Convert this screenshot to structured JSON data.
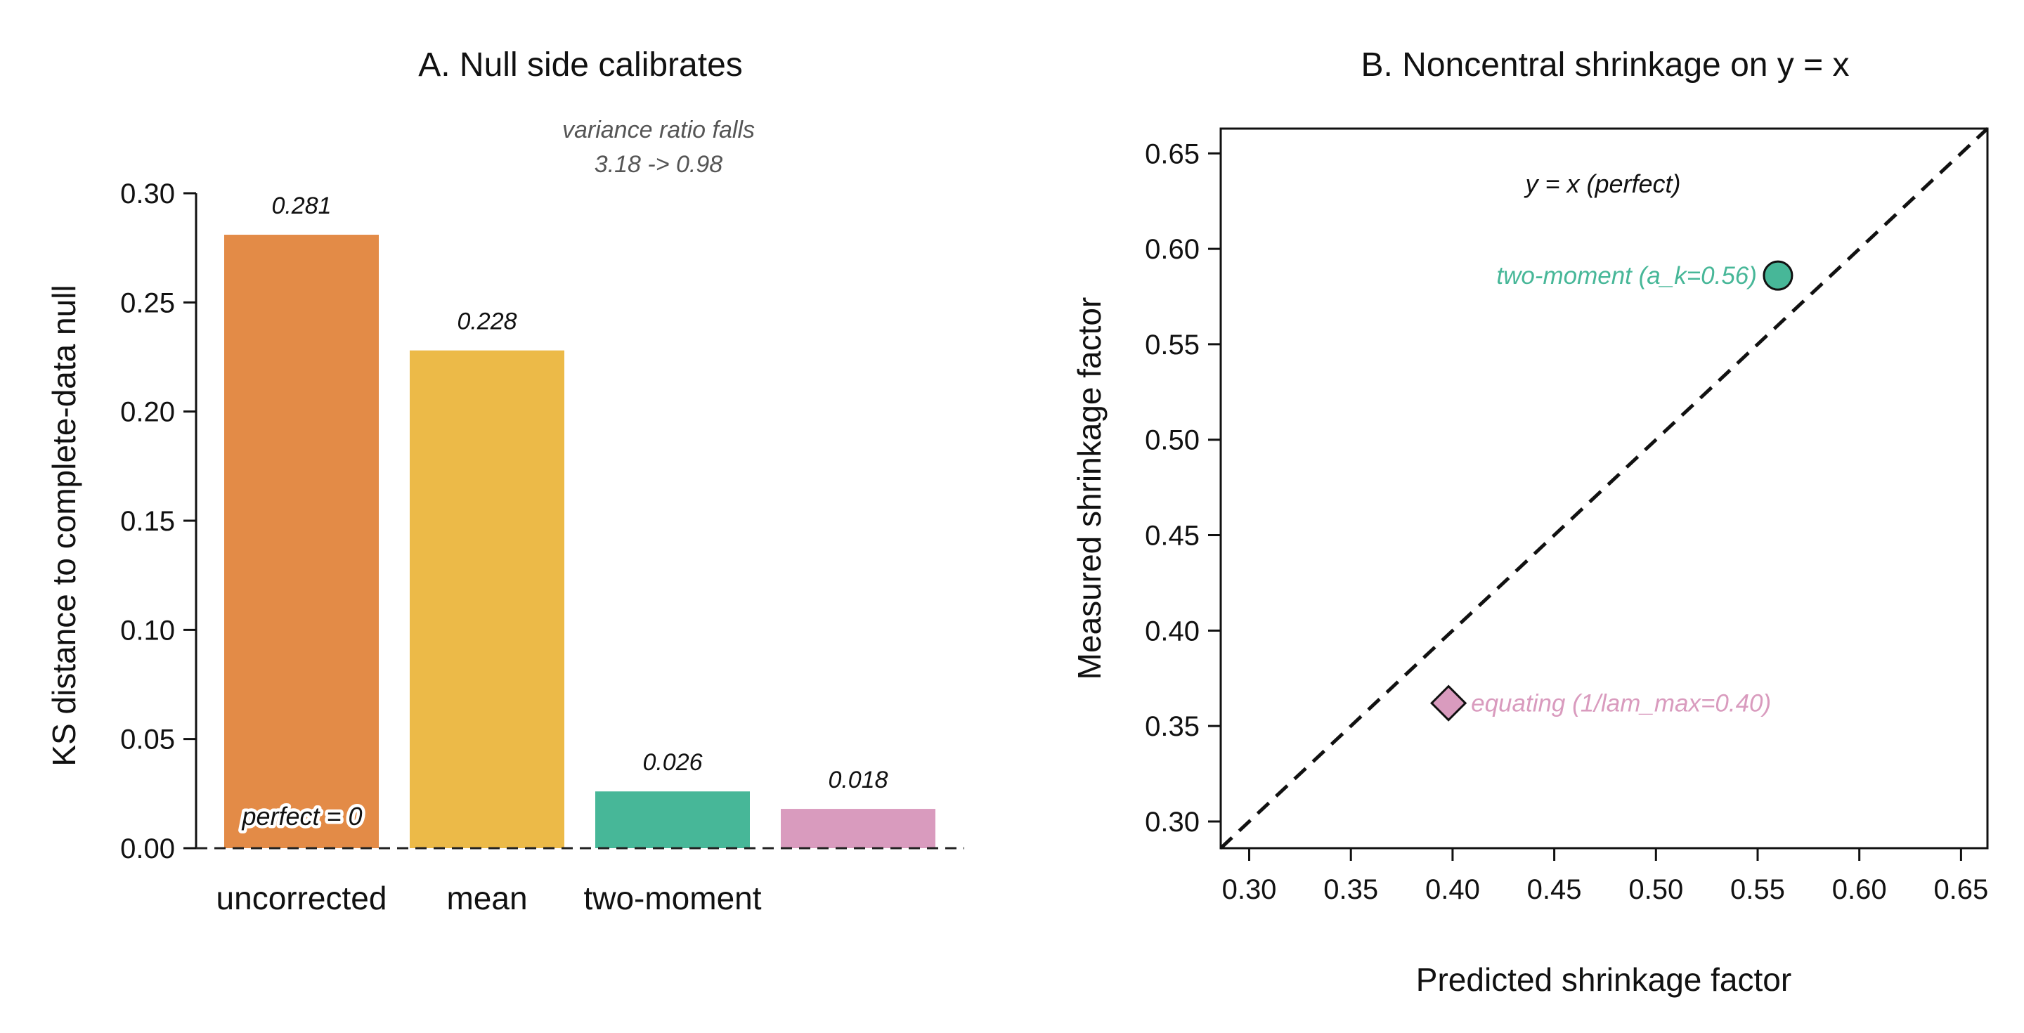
{
  "chart_data": [
    {
      "panel": "A",
      "type": "bar",
      "title": "A. Null side calibrates",
      "xlabel": "",
      "ylabel": "KS distance to complete-data null",
      "categories": [
        "uncorrected",
        "mean",
        "two-moment",
        ""
      ],
      "values": [
        0.281,
        0.228,
        0.026,
        0.018
      ],
      "data_labels": [
        "0.281",
        "0.228",
        "0.026",
        "0.018"
      ],
      "colors": [
        "#E38B47",
        "#ECBA48",
        "#47B798",
        "#D99BBE"
      ],
      "ylim": [
        0,
        0.3
      ],
      "yticks": [
        0.0,
        0.05,
        0.1,
        0.15,
        0.2,
        0.25,
        0.3
      ],
      "ytick_labels": [
        "0.00",
        "0.05",
        "0.10",
        "0.15",
        "0.20",
        "0.25",
        "0.30"
      ],
      "reference_line": {
        "y": 0,
        "label": "perfect = 0",
        "style": "dashed"
      },
      "annotation": {
        "lines": [
          "variance ratio falls",
          "3.18 -> 0.98"
        ]
      },
      "grid": false
    },
    {
      "panel": "B",
      "type": "scatter",
      "title": "B. Noncentral shrinkage on y = x",
      "xlabel": "Predicted shrinkage factor",
      "ylabel": "Measured shrinkage factor",
      "xlim": [
        0.286,
        0.663
      ],
      "ylim": [
        0.286,
        0.663
      ],
      "xticks": [
        0.3,
        0.35,
        0.4,
        0.45,
        0.5,
        0.55,
        0.6,
        0.65
      ],
      "xtick_labels": [
        "0.30",
        "0.35",
        "0.40",
        "0.45",
        "0.50",
        "0.55",
        "0.60",
        "0.65"
      ],
      "yticks": [
        0.3,
        0.35,
        0.4,
        0.45,
        0.5,
        0.55,
        0.6,
        0.65
      ],
      "ytick_labels": [
        "0.30",
        "0.35",
        "0.40",
        "0.45",
        "0.50",
        "0.55",
        "0.60",
        "0.65"
      ],
      "reference_line": {
        "type": "y = x",
        "label": "y = x (perfect)",
        "style": "dashed"
      },
      "points": [
        {
          "label": "two-moment (a_k=0.56)",
          "x": 0.56,
          "y": 0.586,
          "marker": "circle",
          "color": "#47B798",
          "label_side": "left"
        },
        {
          "label": "equating (1/lam_max=0.40)",
          "x": 0.398,
          "y": 0.362,
          "marker": "diamond",
          "color": "#D99BBE",
          "label_side": "right"
        }
      ],
      "grid": false
    }
  ]
}
